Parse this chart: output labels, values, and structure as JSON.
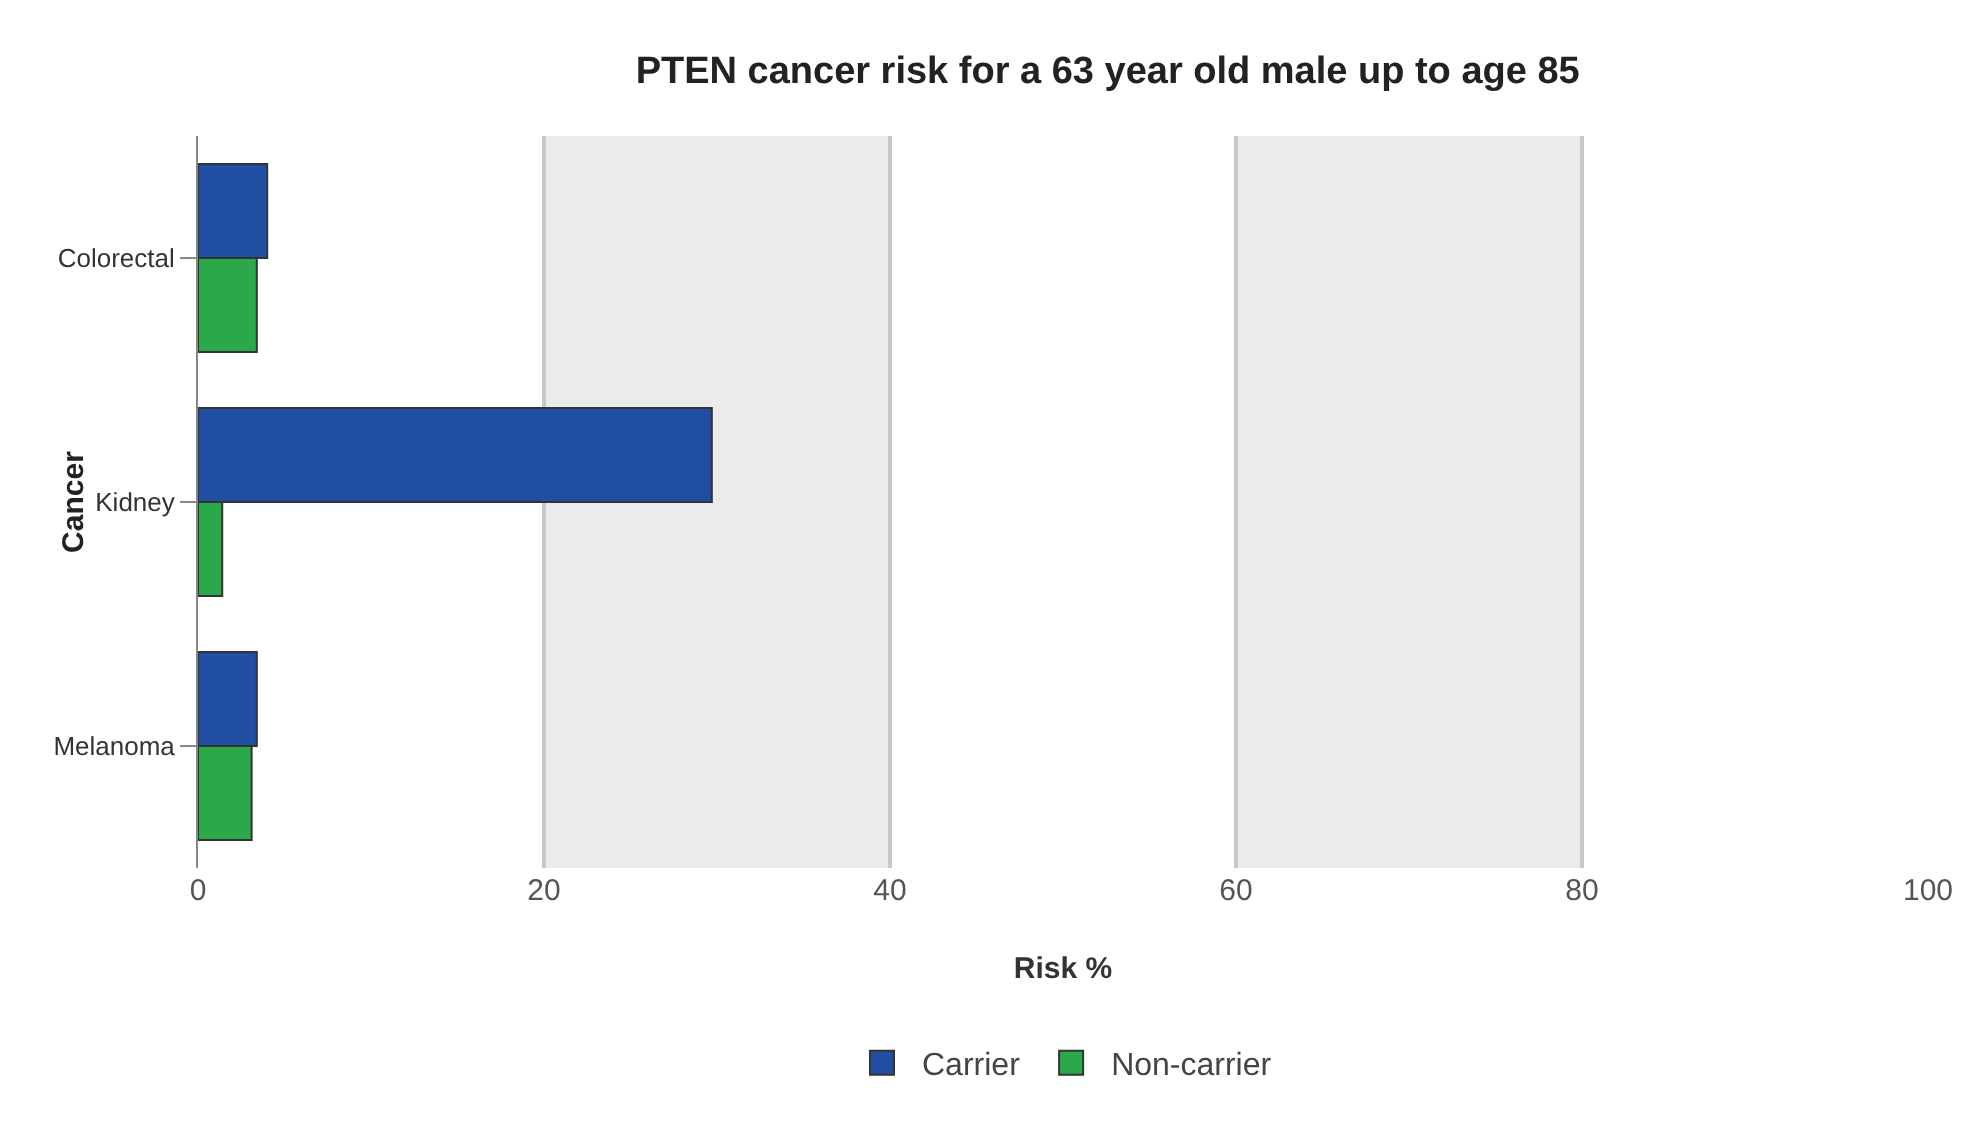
{
  "chart_data": {
    "type": "bar",
    "orientation": "horizontal",
    "title": "PTEN cancer risk for a 63 year old male up to age 85",
    "xlabel": "Risk %",
    "ylabel": "Cancer",
    "categories": [
      "Colorectal",
      "Kidney",
      "Melanoma"
    ],
    "series": [
      {
        "name": "Carrier",
        "color": "#1f4ea3",
        "values": [
          4.0,
          29.7,
          3.4
        ]
      },
      {
        "name": "Non-carrier",
        "color": "#2aa84a",
        "values": [
          3.4,
          1.4,
          3.1
        ]
      }
    ],
    "xlim": [
      0,
      100
    ],
    "xticks": [
      0,
      20,
      40,
      60,
      80,
      100
    ],
    "grid": "x",
    "legend": "bottom",
    "bands": [
      {
        "axis": "x",
        "from": 20,
        "to": 40,
        "color": "#ebebeb"
      },
      {
        "axis": "x",
        "from": 60,
        "to": 80,
        "color": "#ebebeb"
      }
    ]
  }
}
